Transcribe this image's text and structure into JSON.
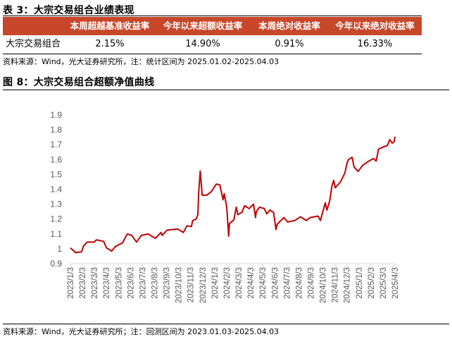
{
  "table": {
    "title": "表 3：大宗交易组合业绩表现",
    "headers": [
      "",
      "本周超越基准收益率",
      "今年以来超额收益率",
      "本周绝对收益率",
      "今年以来绝对收益率"
    ],
    "rows": [
      [
        "大宗交易组合",
        "2.15%",
        "14.90%",
        "0.91%",
        "16.33%"
      ]
    ],
    "header_color": "#c8472a",
    "source": "资料来源：Wind，光大证券研究所，注：统计区间为 2025.01.02-2025.04.03"
  },
  "figure": {
    "title": "图 8：大宗交易组合超额净值曲线",
    "source": "资料来源：Wind，光大证券研究所；注：回测区间为 2023.01.03-2025.04.03"
  },
  "chart_data": {
    "type": "line",
    "title": "",
    "xlabel": "",
    "ylabel": "",
    "ylim": [
      0.9,
      1.9
    ],
    "yticks": [
      "0.9",
      "1",
      "1.1",
      "1.2",
      "1.3",
      "1.4",
      "1.5",
      "1.6",
      "1.7",
      "1.8",
      "1.9"
    ],
    "xticks": [
      "2023/1/3",
      "2023/2/3",
      "2023/3/3",
      "2023/4/3",
      "2023/5/3",
      "2023/6/3",
      "2023/7/3",
      "2023/8/3",
      "2023/9/3",
      "2023/10/3",
      "2023/11/3",
      "2023/12/3",
      "2024/1/3",
      "2024/2/3",
      "2024/3/3",
      "2024/4/3",
      "2024/5/3",
      "2024/6/3",
      "2024/7/3",
      "2024/8/3",
      "2024/9/3",
      "2024/10/3",
      "2024/11/3",
      "2024/12/3",
      "2025/1/3",
      "2025/2/3",
      "2025/3/3",
      "2025/4/3"
    ],
    "grid": false,
    "legend": "none",
    "line_color": "#c00000",
    "series": [
      {
        "x": [
          "2023-01-03",
          "2023-01-16",
          "2023-01-31",
          "2023-02-06",
          "2023-02-15",
          "2023-03-02",
          "2023-03-08",
          "2023-03-26",
          "2023-04-03",
          "2023-04-16",
          "2023-04-25",
          "2023-05-13",
          "2023-05-25",
          "2023-06-06",
          "2023-06-18",
          "2023-06-30",
          "2023-07-17",
          "2023-08-05",
          "2023-08-19",
          "2023-08-22",
          "2023-09-04",
          "2023-09-30",
          "2023-10-15",
          "2023-10-24",
          "2023-11-05",
          "2023-11-08",
          "2023-11-17",
          "2023-11-21",
          "2023-11-23",
          "2023-11-27",
          "2023-12-02",
          "2023-12-13",
          "2023-12-25",
          "2024-01-07",
          "2024-01-16",
          "2024-01-24",
          "2024-01-27",
          "2024-02-03",
          "2024-02-08",
          "2024-02-10",
          "2024-02-21",
          "2024-02-27",
          "2024-03-01",
          "2024-03-11",
          "2024-03-18",
          "2024-03-29",
          "2024-04-10",
          "2024-04-15",
          "2024-04-17",
          "2024-04-25",
          "2024-05-07",
          "2024-05-13",
          "2024-05-21",
          "2024-05-30",
          "2024-06-06",
          "2024-06-09",
          "2024-06-20",
          "2024-06-26",
          "2024-07-05",
          "2024-07-23",
          "2024-08-07",
          "2024-08-22",
          "2024-08-31",
          "2024-09-21",
          "2024-09-27",
          "2024-10-09",
          "2024-10-13",
          "2024-10-20",
          "2024-10-26",
          "2024-10-30",
          "2024-11-04",
          "2024-11-17",
          "2024-11-28",
          "2024-12-04",
          "2024-12-07",
          "2024-12-16",
          "2024-12-21",
          "2024-12-31",
          "2025-01-12",
          "2025-01-24",
          "2025-02-09",
          "2025-02-16",
          "2025-02-22",
          "2025-03-05",
          "2025-03-14",
          "2025-03-20",
          "2025-03-26",
          "2025-04-01",
          "2025-04-03"
        ],
        "y": [
          1.006,
          0.974,
          0.98,
          1.02,
          1.045,
          1.045,
          1.06,
          1.05,
          1.006,
          0.985,
          1.015,
          1.04,
          1.1,
          1.09,
          1.045,
          1.09,
          1.1,
          1.07,
          1.11,
          1.09,
          1.125,
          1.133,
          1.11,
          1.155,
          1.15,
          1.19,
          1.2,
          1.23,
          1.37,
          1.523,
          1.36,
          1.36,
          1.385,
          1.435,
          1.43,
          1.33,
          1.37,
          1.28,
          1.085,
          1.17,
          1.195,
          1.28,
          1.23,
          1.245,
          1.29,
          1.27,
          1.3,
          1.21,
          1.25,
          1.28,
          1.27,
          1.235,
          1.26,
          1.245,
          1.13,
          1.165,
          1.195,
          1.21,
          1.18,
          1.19,
          1.215,
          1.19,
          1.21,
          1.22,
          1.19,
          1.31,
          1.26,
          1.32,
          1.425,
          1.46,
          1.41,
          1.45,
          1.51,
          1.583,
          1.6,
          1.615,
          1.55,
          1.52,
          1.56,
          1.583,
          1.607,
          1.59,
          1.67,
          1.686,
          1.694,
          1.734,
          1.71,
          1.72,
          1.754
        ]
      }
    ]
  }
}
